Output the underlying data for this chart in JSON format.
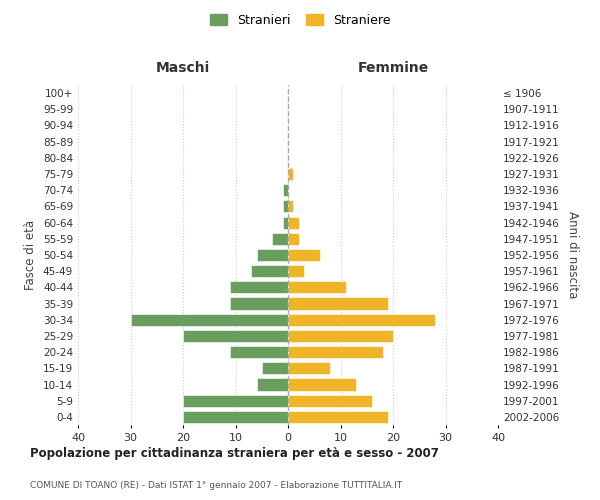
{
  "age_groups": [
    "0-4",
    "5-9",
    "10-14",
    "15-19",
    "20-24",
    "25-29",
    "30-34",
    "35-39",
    "40-44",
    "45-49",
    "50-54",
    "55-59",
    "60-64",
    "65-69",
    "70-74",
    "75-79",
    "80-84",
    "85-89",
    "90-94",
    "95-99",
    "100+"
  ],
  "birth_years": [
    "2002-2006",
    "1997-2001",
    "1992-1996",
    "1987-1991",
    "1982-1986",
    "1977-1981",
    "1972-1976",
    "1967-1971",
    "1962-1966",
    "1957-1961",
    "1952-1956",
    "1947-1951",
    "1942-1946",
    "1937-1941",
    "1932-1936",
    "1927-1931",
    "1922-1926",
    "1917-1921",
    "1912-1916",
    "1907-1911",
    "≤ 1906"
  ],
  "males": [
    20,
    20,
    6,
    5,
    11,
    20,
    30,
    11,
    11,
    7,
    6,
    3,
    1,
    1,
    1,
    0,
    0,
    0,
    0,
    0,
    0
  ],
  "females": [
    19,
    16,
    13,
    8,
    18,
    20,
    28,
    19,
    11,
    3,
    6,
    2,
    2,
    1,
    0,
    1,
    0,
    0,
    0,
    0,
    0
  ],
  "male_color": "#6a9e5e",
  "female_color": "#f0b429",
  "grid_color": "#cccccc",
  "center_line_color": "#aaaaaa",
  "title_main": "Popolazione per cittadinanza straniera per età e sesso - 2007",
  "title_sub": "COMUNE DI TOANO (RE) - Dati ISTAT 1° gennaio 2007 - Elaborazione TUTTITALIA.IT",
  "xlabel_left": "Maschi",
  "xlabel_right": "Femmine",
  "ylabel_left": "Fasce di età",
  "ylabel_right": "Anni di nascita",
  "legend_male": "Stranieri",
  "legend_female": "Straniere",
  "xlim": 40,
  "background_color": "#ffffff",
  "fig_width": 6.0,
  "fig_height": 5.0
}
